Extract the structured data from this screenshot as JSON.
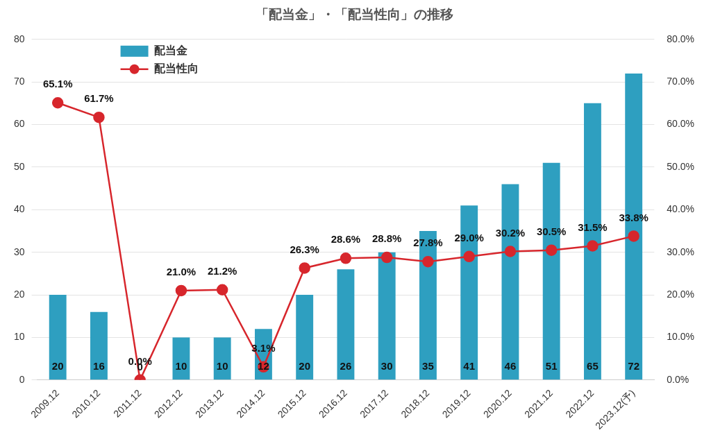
{
  "chart_data": {
    "type": "bar",
    "title": "「配当金」・「配当性向」の推移",
    "categories": [
      "2009.12",
      "2010.12",
      "2011.12",
      "2012.12",
      "2013.12",
      "2014.12",
      "2015.12",
      "2016.12",
      "2017.12",
      "2018.12",
      "2019.12",
      "2020.12",
      "2021.12",
      "2022.12",
      "2023.12(予)"
    ],
    "series": [
      {
        "name": "配当金",
        "type": "bar",
        "color": "#2e9fc0",
        "values": [
          20,
          16,
          0,
          10,
          10,
          12,
          20,
          26,
          30,
          35,
          41,
          46,
          51,
          65,
          72
        ]
      },
      {
        "name": "配当性向",
        "type": "line",
        "color": "#d7262c",
        "marker": "circle",
        "axis": "y2",
        "values": [
          65.1,
          61.7,
          0.0,
          21.0,
          21.2,
          3.1,
          26.3,
          28.6,
          28.8,
          27.8,
          29.0,
          30.2,
          30.5,
          31.5,
          33.8
        ],
        "value_labels": [
          "65.1%",
          "61.7%",
          "0.0%",
          "21.0%",
          "21.2%",
          "3.1%",
          "26.3%",
          "28.6%",
          "28.8%",
          "27.8%",
          "29.0%",
          "30.2%",
          "30.5%",
          "31.5%",
          "33.8%"
        ]
      }
    ],
    "ylim": [
      0,
      80
    ],
    "yticks": [
      0,
      10,
      20,
      30,
      40,
      50,
      60,
      70,
      80
    ],
    "y2lim": [
      0,
      80
    ],
    "y2ticks": [
      {
        "value": 0,
        "label": "0.0%"
      },
      {
        "value": 10,
        "label": "10.0%"
      },
      {
        "value": 20,
        "label": "20.0%"
      },
      {
        "value": 30,
        "label": "30.0%"
      },
      {
        "value": 40,
        "label": "40.0%"
      },
      {
        "value": 50,
        "label": "50.0%"
      },
      {
        "value": 60,
        "label": "60.0%"
      },
      {
        "value": 70,
        "label": "70.0%"
      },
      {
        "value": 80,
        "label": "80.0%"
      }
    ],
    "grid": true,
    "legend": "top-left",
    "data_labels": true
  }
}
